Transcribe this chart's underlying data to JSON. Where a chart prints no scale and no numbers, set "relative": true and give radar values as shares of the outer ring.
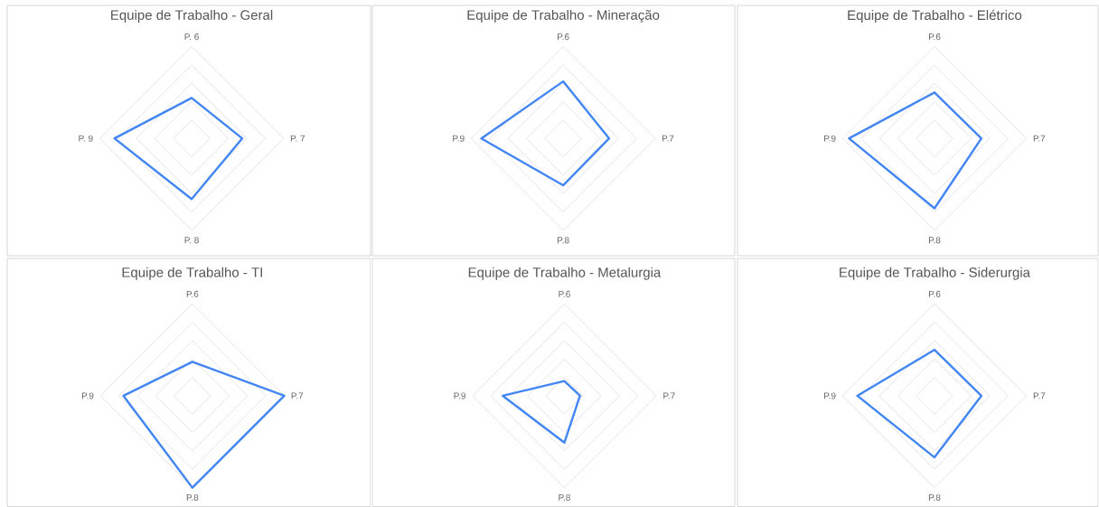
{
  "chart_data": [
    {
      "type": "radar",
      "title": "Equipe de Trabalho - Geral",
      "categories": [
        "P. 6",
        "P. 7",
        "P. 8",
        "P. 9"
      ],
      "relative": true,
      "grid": true,
      "series": [
        {
          "color": "#4285f4",
          "values": [
            0.44,
            0.55,
            0.66,
            0.84
          ]
        }
      ]
    },
    {
      "type": "radar",
      "title": "Equipe de Trabalho - Mineração",
      "categories": [
        "P.6",
        "P.7",
        "P.8",
        "P.9"
      ],
      "relative": true,
      "grid": true,
      "series": [
        {
          "color": "#4285f4",
          "values": [
            0.62,
            0.5,
            0.51,
            0.89
          ]
        }
      ]
    },
    {
      "type": "radar",
      "title": "Equipe de Trabalho - Elétrico",
      "categories": [
        "P.6",
        "P.7",
        "P.8",
        "P.9"
      ],
      "relative": true,
      "grid": true,
      "series": [
        {
          "color": "#4285f4",
          "values": [
            0.5,
            0.51,
            0.76,
            0.93
          ]
        }
      ]
    },
    {
      "type": "radar",
      "title": "Equipe de Trabalho - TI",
      "categories": [
        "P.6",
        "P.7",
        "P.8",
        "P.9"
      ],
      "relative": true,
      "grid": true,
      "series": [
        {
          "color": "#4285f4",
          "values": [
            0.37,
            1.0,
            1.0,
            0.75
          ]
        }
      ]
    },
    {
      "type": "radar",
      "title": "Equipe de Trabalho - Metalurgia",
      "categories": [
        "P.6",
        "P.7",
        "P.8",
        "P.9"
      ],
      "relative": true,
      "grid": true,
      "series": [
        {
          "color": "#4285f4",
          "values": [
            0.16,
            0.17,
            0.51,
            0.67
          ]
        }
      ]
    },
    {
      "type": "radar",
      "title": "Equipe de Trabalho - Siderurgia",
      "categories": [
        "P.6",
        "P.7",
        "P.8",
        "P.9"
      ],
      "relative": true,
      "grid": true,
      "series": [
        {
          "color": "#4285f4",
          "values": [
            0.5,
            0.51,
            0.67,
            0.84
          ]
        }
      ]
    }
  ]
}
